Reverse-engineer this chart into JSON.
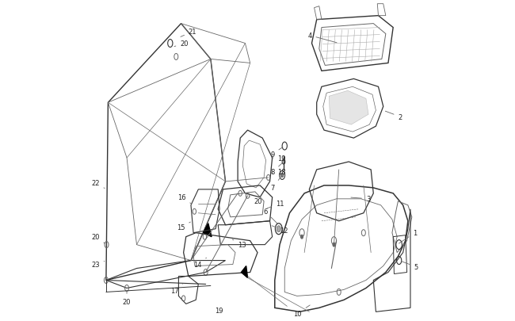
{
  "bg": "#ffffff",
  "lc": "#666666",
  "dc": "#333333",
  "tc": "#222222",
  "fw": 6.5,
  "fh": 4.06,
  "dpi": 100
}
